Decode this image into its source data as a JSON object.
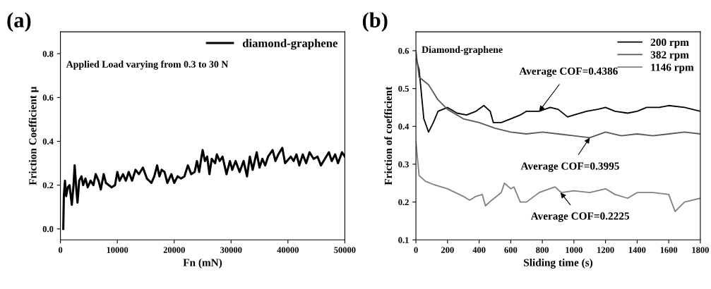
{
  "chart_data": [
    {
      "type": "line",
      "title": "(a)",
      "xlabel": "Fn (mN)",
      "ylabel": "Friction Coefficient μ",
      "annotations": [
        "Applied Load varying from 0.3 to 30 N"
      ],
      "xlim": [
        0,
        50000
      ],
      "xticks": [
        0,
        10000,
        20000,
        30000,
        40000,
        50000
      ],
      "ylim": [
        -0.05,
        0.9
      ],
      "yticks": [
        {
          "value": 0,
          "label": "0.0"
        },
        {
          "value": 0.2,
          "label": "0.2"
        },
        {
          "value": 0.4,
          "label": "0.4"
        },
        {
          "value": 0.6,
          "label": "0.6"
        },
        {
          "value": 0.8,
          "label": "0.8"
        }
      ],
      "grid": false,
      "legend": "top right",
      "marker": "none",
      "line_style": "solid",
      "series": [
        {
          "name": "diamond-graphene",
          "color": "#000000",
          "x": [
            500,
            600,
            800,
            1000,
            1300,
            1600,
            2000,
            2300,
            2500,
            2800,
            3000,
            3300,
            3700,
            4000,
            4400,
            4800,
            5300,
            5800,
            6200,
            6700,
            7100,
            7600,
            8000,
            9000,
            9600,
            10000,
            10400,
            11000,
            11500,
            12000,
            12600,
            13200,
            13800,
            14500,
            15200,
            16000,
            16500,
            17000,
            17400,
            17800,
            18300,
            18800,
            19500,
            20000,
            20600,
            21200,
            21800,
            22400,
            23000,
            23600,
            24000,
            24400,
            24800,
            25000,
            25400,
            25800,
            26200,
            26600,
            27200,
            27500,
            28000,
            28500,
            29200,
            29800,
            30200,
            30800,
            31500,
            32200,
            32800,
            33300,
            33800,
            34500,
            35000,
            35500,
            36000,
            36500,
            37300,
            37800,
            38300,
            39000,
            39500,
            40500,
            41000,
            41500,
            42000,
            42600,
            43200,
            43800,
            44500,
            45200,
            45800,
            46500,
            47200,
            47700,
            48300,
            48800,
            49500,
            50000
          ],
          "values": [
            0.0,
            0.15,
            0.22,
            0.15,
            0.19,
            0.2,
            0.11,
            0.2,
            0.29,
            0.18,
            0.12,
            0.22,
            0.24,
            0.2,
            0.23,
            0.19,
            0.22,
            0.2,
            0.25,
            0.22,
            0.18,
            0.25,
            0.21,
            0.19,
            0.2,
            0.26,
            0.22,
            0.25,
            0.22,
            0.26,
            0.22,
            0.27,
            0.25,
            0.28,
            0.23,
            0.21,
            0.24,
            0.29,
            0.24,
            0.27,
            0.26,
            0.21,
            0.25,
            0.21,
            0.24,
            0.23,
            0.24,
            0.29,
            0.25,
            0.26,
            0.31,
            0.26,
            0.33,
            0.36,
            0.31,
            0.33,
            0.25,
            0.32,
            0.3,
            0.34,
            0.31,
            0.33,
            0.25,
            0.31,
            0.27,
            0.31,
            0.26,
            0.31,
            0.24,
            0.33,
            0.27,
            0.35,
            0.28,
            0.32,
            0.29,
            0.33,
            0.36,
            0.31,
            0.34,
            0.37,
            0.3,
            0.33,
            0.31,
            0.34,
            0.29,
            0.34,
            0.3,
            0.35,
            0.32,
            0.33,
            0.29,
            0.32,
            0.35,
            0.31,
            0.34,
            0.3,
            0.35,
            0.33
          ]
        }
      ]
    },
    {
      "type": "line",
      "title": "(b)",
      "xlabel": "Sliding time (s)",
      "ylabel": "Friction of coefficient",
      "annotations": [
        "Diamond-graphene",
        {
          "text": "Average COF=0.4386",
          "x": 780,
          "y": 0.44
        },
        {
          "text": "Average COF=0.3995",
          "x": 1100,
          "y": 0.37
        },
        {
          "text": "Average COF=0.2225",
          "x": 915,
          "y": 0.225
        }
      ],
      "xlim": [
        0,
        1800
      ],
      "xticks": [
        0,
        200,
        400,
        600,
        800,
        1000,
        1200,
        1400,
        1600,
        1800
      ],
      "ylim": [
        0.1,
        0.65
      ],
      "yticks": [
        0.1,
        0.2,
        0.3,
        0.4,
        0.5,
        0.6
      ],
      "grid": false,
      "legend": "top right",
      "marker": "none",
      "line_style": "solid",
      "series": [
        {
          "name": "200 rpm",
          "color": "#000000",
          "x": [
            0,
            20,
            50,
            80,
            110,
            140,
            200,
            260,
            320,
            380,
            430,
            470,
            490,
            540,
            600,
            660,
            700,
            780,
            850,
            900,
            960,
            1000,
            1080,
            1150,
            1200,
            1260,
            1340,
            1400,
            1460,
            1540,
            1600,
            1700,
            1800
          ],
          "values": [
            0.58,
            0.55,
            0.42,
            0.385,
            0.41,
            0.44,
            0.45,
            0.435,
            0.43,
            0.44,
            0.455,
            0.44,
            0.41,
            0.41,
            0.42,
            0.43,
            0.44,
            0.44,
            0.45,
            0.445,
            0.425,
            0.43,
            0.44,
            0.445,
            0.45,
            0.44,
            0.435,
            0.44,
            0.45,
            0.45,
            0.455,
            0.45,
            0.44
          ]
        },
        {
          "name": "382 rpm",
          "color": "#585858",
          "x": [
            0,
            20,
            80,
            140,
            200,
            300,
            400,
            500,
            600,
            700,
            800,
            900,
            1000,
            1100,
            1200,
            1300,
            1400,
            1500,
            1600,
            1700,
            1800
          ],
          "values": [
            0.6,
            0.53,
            0.51,
            0.47,
            0.445,
            0.42,
            0.41,
            0.395,
            0.385,
            0.38,
            0.385,
            0.38,
            0.375,
            0.37,
            0.385,
            0.375,
            0.38,
            0.375,
            0.38,
            0.385,
            0.38
          ]
        },
        {
          "name": "1146 rpm",
          "color": "#808080",
          "x": [
            0,
            20,
            60,
            120,
            200,
            300,
            340,
            380,
            420,
            440,
            480,
            540,
            560,
            600,
            620,
            660,
            700,
            780,
            880,
            920,
            1000,
            1100,
            1200,
            1260,
            1340,
            1400,
            1500,
            1600,
            1640,
            1700,
            1800
          ],
          "values": [
            0.36,
            0.27,
            0.255,
            0.245,
            0.235,
            0.215,
            0.205,
            0.215,
            0.22,
            0.19,
            0.205,
            0.225,
            0.25,
            0.235,
            0.24,
            0.2,
            0.2,
            0.225,
            0.24,
            0.225,
            0.23,
            0.225,
            0.235,
            0.22,
            0.21,
            0.225,
            0.225,
            0.22,
            0.175,
            0.2,
            0.21
          ]
        }
      ]
    }
  ]
}
